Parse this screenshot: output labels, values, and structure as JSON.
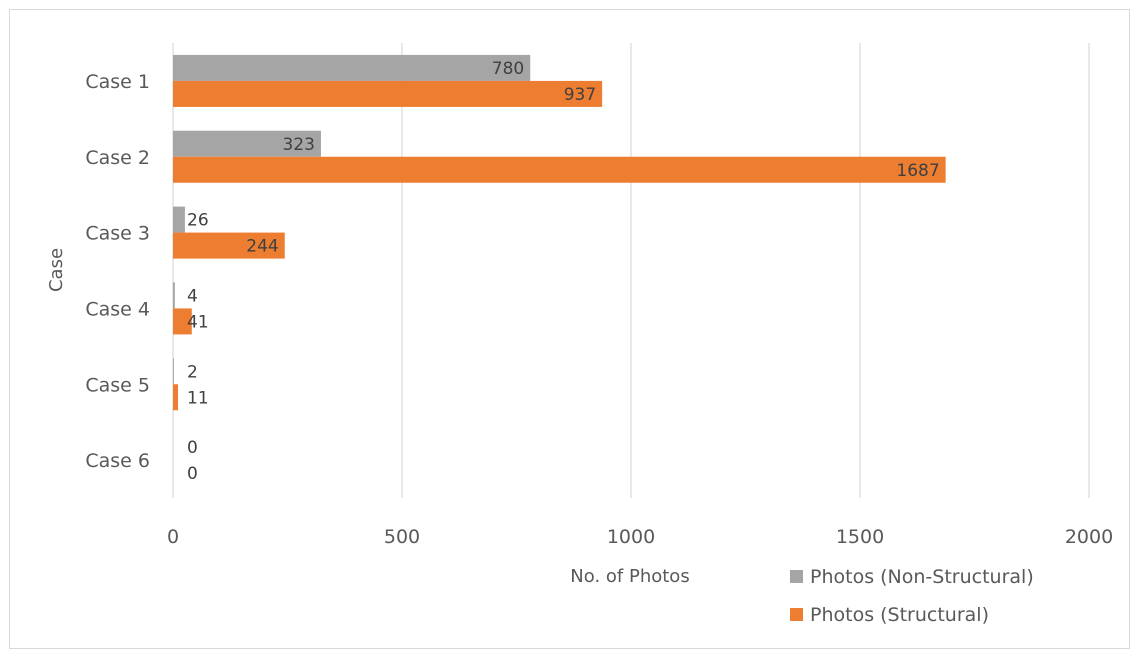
{
  "chart_data": {
    "type": "bar",
    "orientation": "horizontal",
    "title": "",
    "xlabel": "No. of Photos",
    "ylabel": "Case",
    "categories": [
      "Case 1",
      "Case 2",
      "Case 3",
      "Case 4",
      "Case 5",
      "Case 6"
    ],
    "series": [
      {
        "name": "Photos (Non-Structural)",
        "color": "#a5a5a5",
        "values": [
          780,
          323,
          26,
          4,
          2,
          0
        ]
      },
      {
        "name": "Photos (Structural)",
        "color": "#ed7d31",
        "values": [
          937,
          1687,
          244,
          41,
          11,
          0
        ]
      }
    ],
    "xlim": [
      0,
      2000
    ],
    "xticks": [
      "0",
      "500",
      "1000",
      "1500",
      "2000"
    ],
    "xtick_values": [
      0,
      500,
      1000,
      1500,
      2000
    ],
    "grid": "vertical",
    "legend_position": "bottom-right",
    "data_labels": true
  }
}
